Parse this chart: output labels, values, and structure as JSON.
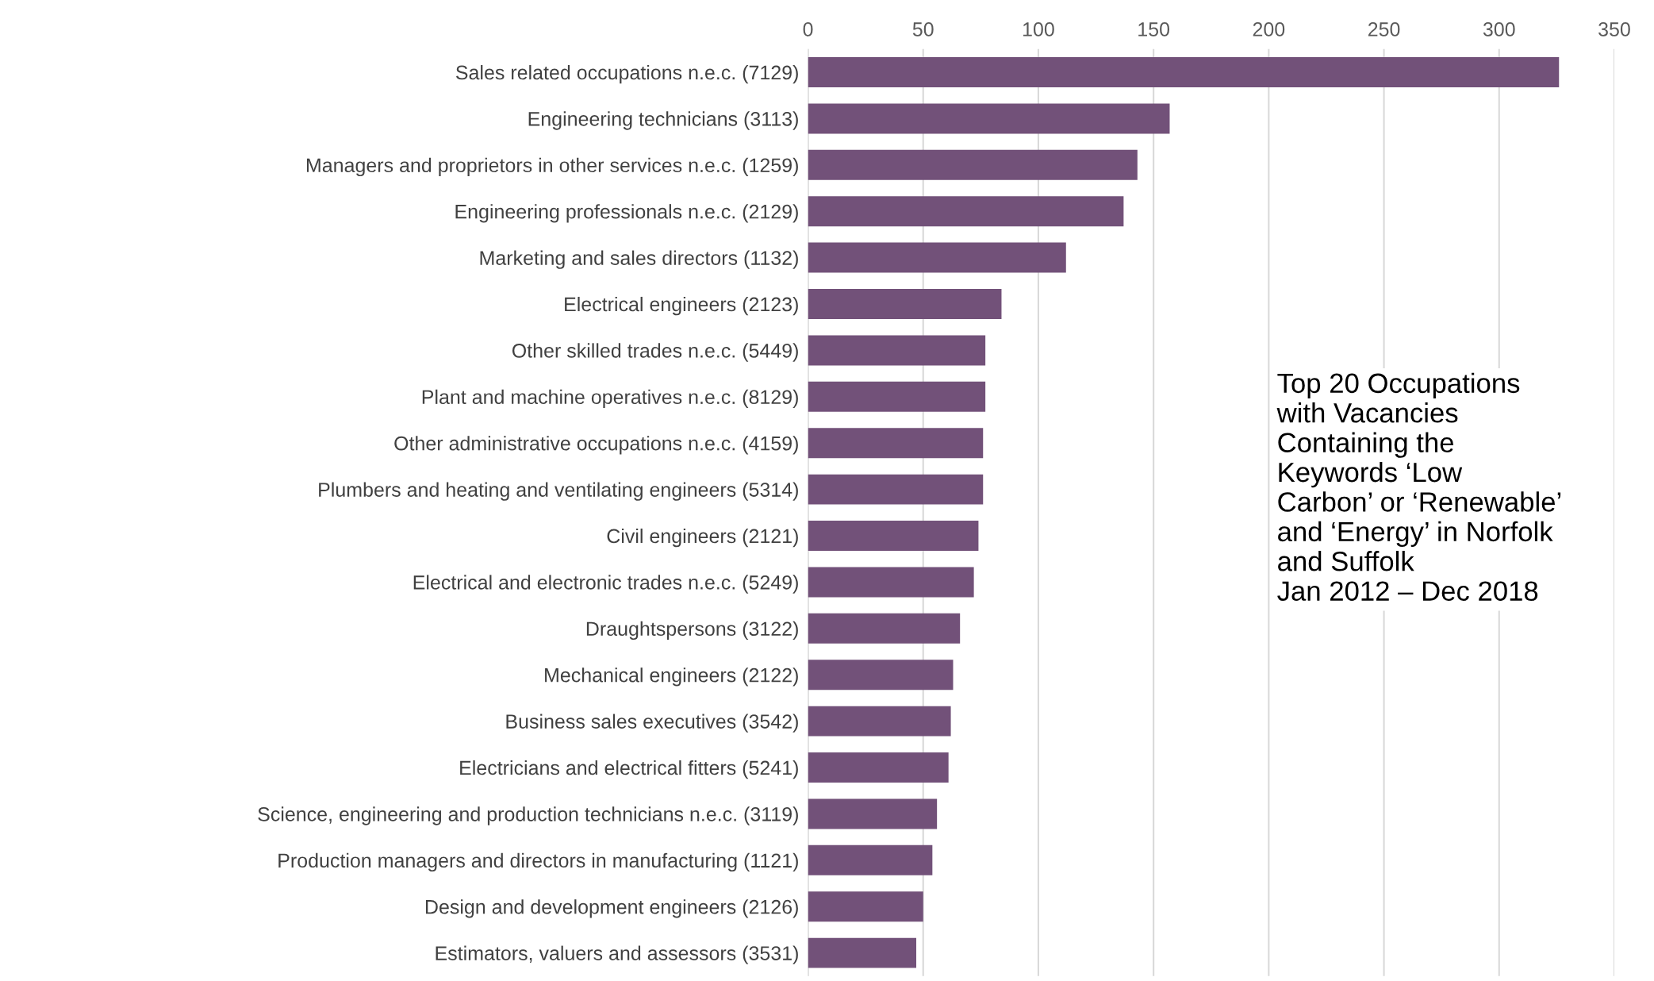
{
  "chart_data": {
    "type": "bar",
    "orientation": "horizontal",
    "title": "Top 20 Occupations\nwith Vacancies\nContaining the\nKeywords ‘Low\nCarbon’ or ‘Renewable’\nand ‘Energy’ in Norfolk\nand Suffolk\nJan 2012 – Dec 2018",
    "categories": [
      "Sales related occupations n.e.c. (7129)",
      "Engineering technicians (3113)",
      "Managers and proprietors in other services n.e.c. (1259)",
      "Engineering professionals n.e.c. (2129)",
      "Marketing and sales directors (1132)",
      "Electrical engineers (2123)",
      "Other skilled trades n.e.c. (5449)",
      "Plant and machine operatives n.e.c. (8129)",
      "Other administrative occupations n.e.c. (4159)",
      "Plumbers and heating and ventilating engineers (5314)",
      "Civil engineers (2121)",
      "Electrical and electronic trades n.e.c. (5249)",
      "Draughtspersons (3122)",
      "Mechanical engineers (2122)",
      "Business sales executives (3542)",
      "Electricians and electrical fitters (5241)",
      "Science, engineering and production technicians n.e.c. (3119)",
      "Production managers and directors in manufacturing (1121)",
      "Design and development engineers (2126)",
      "Estimators, valuers and assessors (3531)"
    ],
    "values": [
      326,
      157,
      143,
      137,
      112,
      84,
      77,
      77,
      76,
      76,
      74,
      72,
      66,
      63,
      62,
      61,
      56,
      54,
      50,
      47
    ],
    "color": "#725179",
    "xlim": [
      0,
      350
    ],
    "xticks": [
      0,
      50,
      100,
      150,
      200,
      250,
      300,
      350
    ],
    "grid": "x"
  }
}
